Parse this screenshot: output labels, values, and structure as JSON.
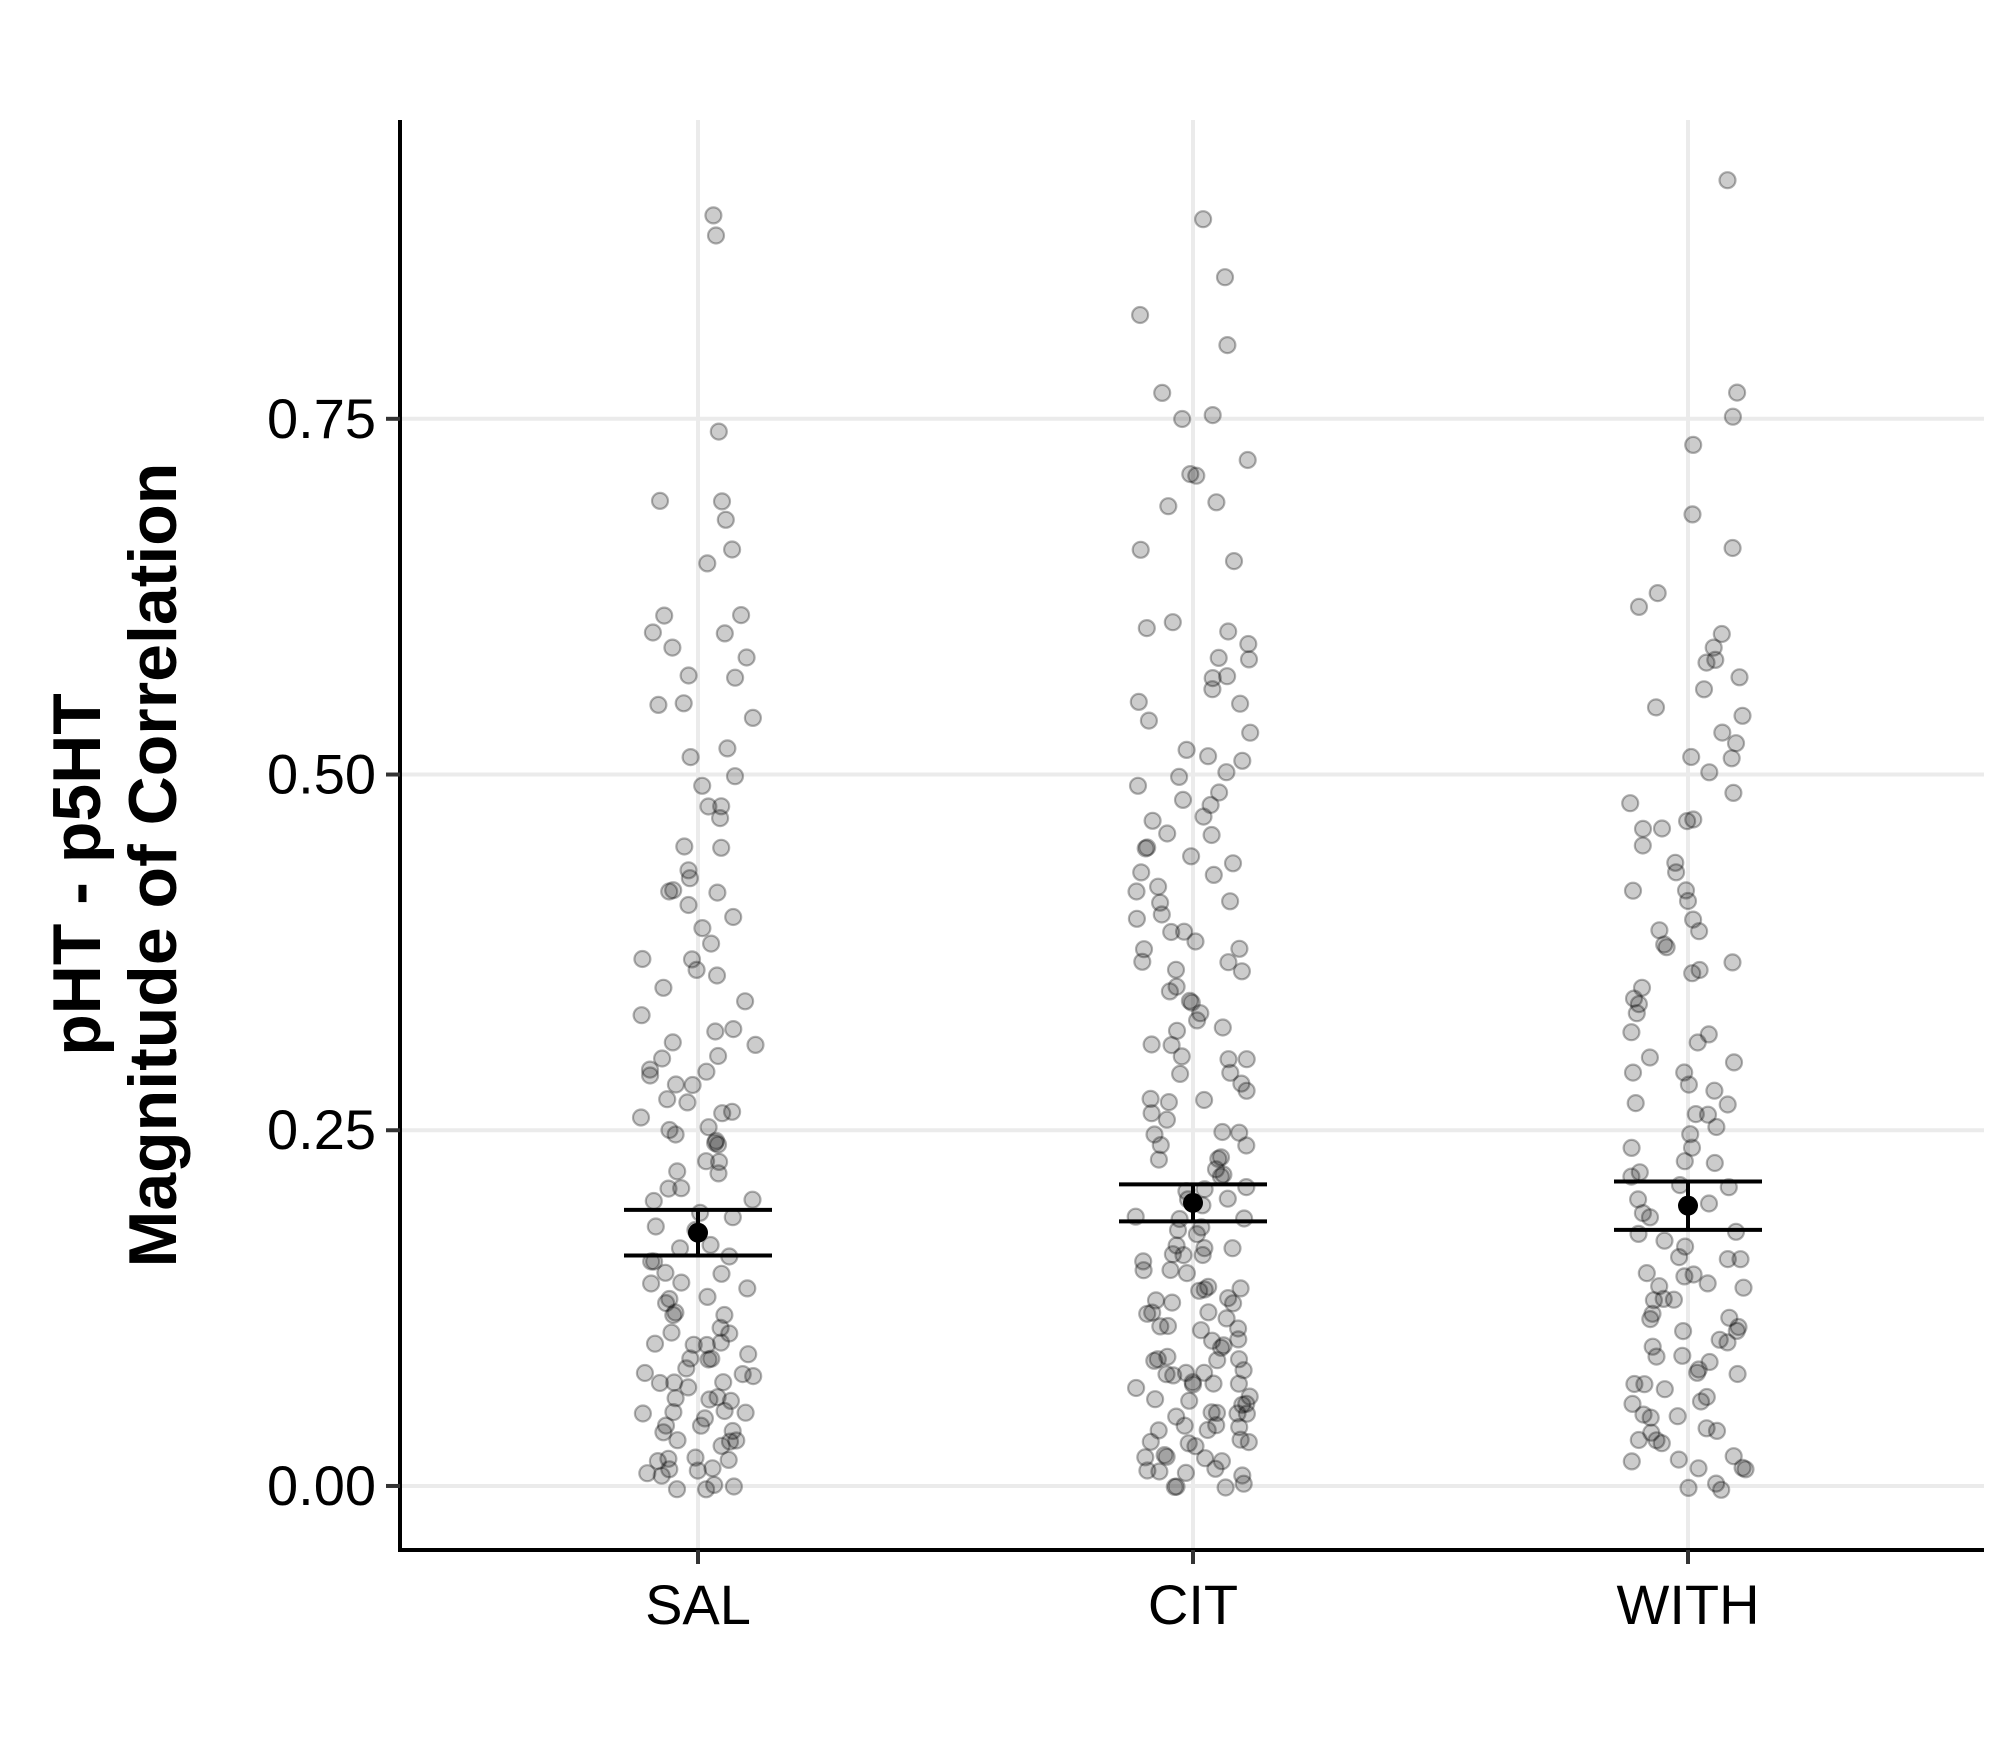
{
  "chart_data": {
    "type": "scatter",
    "subtype": "jitter-strip-with-mean-and-error-bars",
    "title": "",
    "xlabel": "",
    "ylabel": [
      "pHT - p5HT",
      "Magnitude of Correlation"
    ],
    "categories": [
      "SAL",
      "CIT",
      "WITH"
    ],
    "ylim": [
      -0.045,
      0.96
    ],
    "yticks": [
      0.0,
      0.25,
      0.5,
      0.75
    ],
    "ytick_labels": [
      "0.00",
      "0.25",
      "0.50",
      "0.75"
    ],
    "grid": "major",
    "legend": "none",
    "point_color": "#000000",
    "point_opacity": 0.2,
    "summary": [
      {
        "category": "SAL",
        "mean": 0.178,
        "lower": 0.162,
        "upper": 0.194
      },
      {
        "category": "CIT",
        "mean": 0.199,
        "lower": 0.186,
        "upper": 0.212
      },
      {
        "category": "WITH",
        "mean": 0.197,
        "lower": 0.18,
        "upper": 0.214
      }
    ],
    "series": [
      {
        "category": "SAL",
        "values": [
          0.88,
          0.89,
          0.74,
          0.69,
          0.69,
          0.68,
          0.66,
          0.65,
          0.61,
          0.61,
          0.6,
          0.6,
          0.59,
          0.58,
          0.57,
          0.57,
          0.55,
          0.55,
          0.54,
          0.52,
          0.51,
          0.5,
          0.49,
          0.48,
          0.48,
          0.47,
          0.45,
          0.45,
          0.43,
          0.43,
          0.42,
          0.42,
          0.42,
          0.41,
          0.4,
          0.39,
          0.38,
          0.37,
          0.37,
          0.36,
          0.36,
          0.35,
          0.34,
          0.33,
          0.32,
          0.32,
          0.31,
          0.31,
          0.3,
          0.3,
          0.29,
          0.29,
          0.29,
          0.28,
          0.28,
          0.27,
          0.27,
          0.26,
          0.26,
          0.26,
          0.25,
          0.25,
          0.25,
          0.24,
          0.24,
          0.24,
          0.23,
          0.23,
          0.22,
          0.22,
          0.21,
          0.21,
          0.2,
          0.2,
          0.19,
          0.19,
          0.18,
          0.18,
          0.17,
          0.17,
          0.16,
          0.16,
          0.16,
          0.15,
          0.15,
          0.14,
          0.14,
          0.14,
          0.13,
          0.13,
          0.13,
          0.12,
          0.12,
          0.12,
          0.11,
          0.11,
          0.11,
          0.1,
          0.1,
          0.1,
          0.1,
          0.09,
          0.09,
          0.09,
          0.09,
          0.08,
          0.08,
          0.08,
          0.08,
          0.07,
          0.07,
          0.07,
          0.07,
          0.06,
          0.06,
          0.06,
          0.06,
          0.05,
          0.05,
          0.05,
          0.05,
          0.05,
          0.04,
          0.04,
          0.04,
          0.04,
          0.03,
          0.03,
          0.03,
          0.03,
          0.02,
          0.02,
          0.02,
          0.02,
          0.01,
          0.01,
          0.01,
          0.01,
          0.01,
          0.0,
          0.0,
          0.0,
          0.0
        ]
      },
      {
        "category": "CIT",
        "values": [
          0.89,
          0.85,
          0.82,
          0.8,
          0.77,
          0.75,
          0.75,
          0.72,
          0.71,
          0.71,
          0.69,
          0.69,
          0.66,
          0.65,
          0.61,
          0.6,
          0.6,
          0.59,
          0.58,
          0.58,
          0.57,
          0.57,
          0.56,
          0.55,
          0.55,
          0.54,
          0.53,
          0.52,
          0.51,
          0.51,
          0.5,
          0.5,
          0.49,
          0.49,
          0.48,
          0.48,
          0.47,
          0.47,
          0.46,
          0.46,
          0.45,
          0.45,
          0.44,
          0.44,
          0.43,
          0.43,
          0.42,
          0.42,
          0.41,
          0.41,
          0.4,
          0.4,
          0.39,
          0.39,
          0.38,
          0.38,
          0.38,
          0.37,
          0.37,
          0.36,
          0.36,
          0.35,
          0.35,
          0.34,
          0.34,
          0.33,
          0.33,
          0.32,
          0.32,
          0.31,
          0.31,
          0.3,
          0.3,
          0.3,
          0.29,
          0.29,
          0.28,
          0.28,
          0.27,
          0.27,
          0.27,
          0.26,
          0.26,
          0.25,
          0.25,
          0.25,
          0.24,
          0.24,
          0.23,
          0.23,
          0.23,
          0.22,
          0.22,
          0.22,
          0.21,
          0.21,
          0.21,
          0.2,
          0.2,
          0.2,
          0.19,
          0.19,
          0.19,
          0.18,
          0.18,
          0.18,
          0.17,
          0.17,
          0.17,
          0.16,
          0.16,
          0.16,
          0.16,
          0.15,
          0.15,
          0.15,
          0.14,
          0.14,
          0.14,
          0.14,
          0.13,
          0.13,
          0.13,
          0.13,
          0.12,
          0.12,
          0.12,
          0.12,
          0.11,
          0.11,
          0.11,
          0.11,
          0.1,
          0.1,
          0.1,
          0.1,
          0.09,
          0.09,
          0.09,
          0.09,
          0.09,
          0.08,
          0.08,
          0.08,
          0.08,
          0.08,
          0.07,
          0.07,
          0.07,
          0.07,
          0.07,
          0.06,
          0.06,
          0.06,
          0.06,
          0.06,
          0.05,
          0.05,
          0.05,
          0.05,
          0.05,
          0.04,
          0.04,
          0.04,
          0.04,
          0.04,
          0.03,
          0.03,
          0.03,
          0.03,
          0.03,
          0.02,
          0.02,
          0.02,
          0.02,
          0.02,
          0.01,
          0.01,
          0.01,
          0.01,
          0.01,
          0.0,
          0.0,
          0.0,
          0.0
        ]
      },
      {
        "category": "WITH",
        "values": [
          0.92,
          0.77,
          0.75,
          0.73,
          0.68,
          0.66,
          0.63,
          0.62,
          0.6,
          0.59,
          0.58,
          0.58,
          0.57,
          0.56,
          0.55,
          0.54,
          0.53,
          0.52,
          0.51,
          0.51,
          0.5,
          0.49,
          0.48,
          0.47,
          0.47,
          0.46,
          0.46,
          0.45,
          0.44,
          0.43,
          0.42,
          0.42,
          0.41,
          0.4,
          0.39,
          0.39,
          0.38,
          0.38,
          0.37,
          0.36,
          0.36,
          0.35,
          0.34,
          0.34,
          0.33,
          0.32,
          0.32,
          0.31,
          0.3,
          0.3,
          0.29,
          0.29,
          0.28,
          0.28,
          0.27,
          0.27,
          0.26,
          0.26,
          0.25,
          0.25,
          0.24,
          0.24,
          0.23,
          0.23,
          0.22,
          0.22,
          0.21,
          0.21,
          0.2,
          0.2,
          0.19,
          0.19,
          0.18,
          0.18,
          0.17,
          0.17,
          0.16,
          0.16,
          0.16,
          0.15,
          0.15,
          0.15,
          0.14,
          0.14,
          0.14,
          0.13,
          0.13,
          0.13,
          0.12,
          0.12,
          0.12,
          0.11,
          0.11,
          0.11,
          0.1,
          0.1,
          0.1,
          0.09,
          0.09,
          0.09,
          0.08,
          0.08,
          0.08,
          0.07,
          0.07,
          0.07,
          0.06,
          0.06,
          0.06,
          0.05,
          0.05,
          0.05,
          0.04,
          0.04,
          0.04,
          0.03,
          0.03,
          0.03,
          0.02,
          0.02,
          0.02,
          0.01,
          0.01,
          0.01,
          0.0,
          0.0,
          0.0
        ]
      }
    ]
  }
}
